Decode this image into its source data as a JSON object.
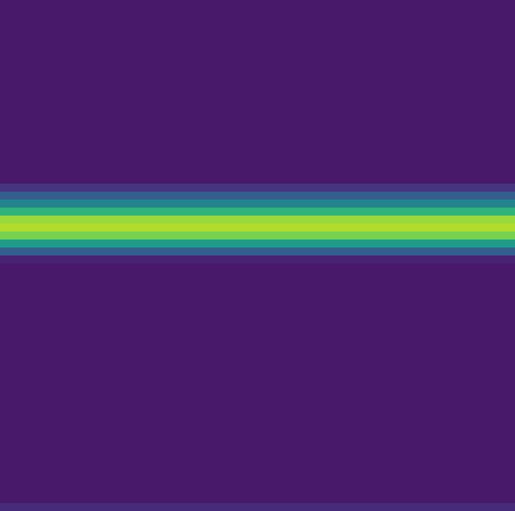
{
  "chart_data": {
    "type": "heatmap",
    "tick_labels": false,
    "grid": false,
    "color_range": [
      0,
      10
    ],
    "cells": [
      [
        0.7
      ],
      [
        0.7
      ],
      [
        0.7
      ],
      [
        0.7
      ],
      [
        0.7
      ],
      [
        0.7
      ],
      [
        0.7
      ],
      [
        0.7
      ],
      [
        0.7
      ],
      [
        0.7
      ],
      [
        0.7
      ],
      [
        0.7
      ],
      [
        0.7
      ],
      [
        0.7
      ],
      [
        0.7
      ],
      [
        0.7
      ],
      [
        0.7
      ],
      [
        0.7
      ],
      [
        0.7
      ],
      [
        0.7
      ],
      [
        0.7
      ],
      [
        0.7
      ],
      [
        0.7
      ],
      [
        1.5
      ],
      [
        3.0
      ],
      [
        4.5
      ],
      [
        6.5
      ],
      [
        8.5
      ],
      [
        8.8
      ],
      [
        8.0
      ],
      [
        5.5
      ],
      [
        3.0
      ],
      [
        1.0
      ],
      [
        0.7
      ],
      [
        0.7
      ],
      [
        0.7
      ],
      [
        0.7
      ],
      [
        0.7
      ],
      [
        0.7
      ],
      [
        0.7
      ],
      [
        0.7
      ],
      [
        0.7
      ],
      [
        0.7
      ],
      [
        0.7
      ],
      [
        0.7
      ],
      [
        0.7
      ],
      [
        0.7
      ],
      [
        0.7
      ],
      [
        0.7
      ],
      [
        0.7
      ],
      [
        0.7
      ],
      [
        0.7
      ],
      [
        0.7
      ],
      [
        0.7
      ],
      [
        0.7
      ],
      [
        0.7
      ],
      [
        0.7
      ],
      [
        0.7
      ],
      [
        0.7
      ],
      [
        0.7
      ],
      [
        0.7
      ],
      [
        0.7
      ],
      [
        0.7
      ],
      [
        1.2
      ]
    ]
  }
}
